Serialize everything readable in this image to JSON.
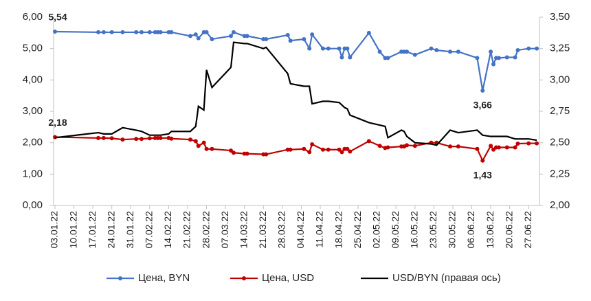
{
  "chart_data": {
    "type": "line",
    "x": [
      "2022-01-03",
      "2022-01-19",
      "2022-01-21",
      "2022-01-24",
      "2022-01-28",
      "2022-02-02",
      "2022-02-04",
      "2022-02-07",
      "2022-02-09",
      "2022-02-10",
      "2022-02-11",
      "2022-02-14",
      "2022-02-15",
      "2022-02-22",
      "2022-02-24",
      "2022-02-25",
      "2022-02-27",
      "2022-02-28",
      "2022-03-02",
      "2022-03-09",
      "2022-03-10",
      "2022-03-14",
      "2022-03-15",
      "2022-03-21",
      "2022-03-22",
      "2022-03-30",
      "2022-03-31",
      "2022-04-05",
      "2022-04-07",
      "2022-04-08",
      "2022-04-12",
      "2022-04-14",
      "2022-04-18",
      "2022-04-19",
      "2022-04-20",
      "2022-04-21",
      "2022-04-22",
      "2022-04-29",
      "2022-05-03",
      "2022-05-05",
      "2022-05-06",
      "2022-05-11",
      "2022-05-12",
      "2022-05-13",
      "2022-05-16",
      "2022-05-22",
      "2022-05-24",
      "2022-05-29",
      "2022-06-01",
      "2022-06-08",
      "2022-06-10",
      "2022-06-13",
      "2022-06-14",
      "2022-06-15",
      "2022-06-16",
      "2022-06-19",
      "2022-06-22",
      "2022-06-23",
      "2022-06-27",
      "2022-06-30"
    ],
    "xlim": [
      "2022-01-03",
      "2022-07-01"
    ],
    "xticks": [
      {
        "value": "2022-01-03",
        "label": "03.01.22"
      },
      {
        "value": "2022-01-10",
        "label": "10.01.22"
      },
      {
        "value": "2022-01-17",
        "label": "17.01.22"
      },
      {
        "value": "2022-01-24",
        "label": "24.01.22"
      },
      {
        "value": "2022-01-31",
        "label": "31.01.22"
      },
      {
        "value": "2022-02-07",
        "label": "07.02.22"
      },
      {
        "value": "2022-02-14",
        "label": "14.02.22"
      },
      {
        "value": "2022-02-21",
        "label": "21.02.22"
      },
      {
        "value": "2022-02-28",
        "label": "28.02.22"
      },
      {
        "value": "2022-03-07",
        "label": "07.03.22"
      },
      {
        "value": "2022-03-14",
        "label": "14.03.22"
      },
      {
        "value": "2022-03-21",
        "label": "21.03.22"
      },
      {
        "value": "2022-03-28",
        "label": "28.03.22"
      },
      {
        "value": "2022-04-04",
        "label": "04.04.22"
      },
      {
        "value": "2022-04-11",
        "label": "11.04.22"
      },
      {
        "value": "2022-04-18",
        "label": "18.04.22"
      },
      {
        "value": "2022-04-25",
        "label": "25.04.22"
      },
      {
        "value": "2022-05-02",
        "label": "02.05.22"
      },
      {
        "value": "2022-05-09",
        "label": "09.05.22"
      },
      {
        "value": "2022-05-16",
        "label": "16.05.22"
      },
      {
        "value": "2022-05-23",
        "label": "23.05.22"
      },
      {
        "value": "2022-05-30",
        "label": "30.05.22"
      },
      {
        "value": "2022-06-06",
        "label": "06.06.22"
      },
      {
        "value": "2022-06-13",
        "label": "13.06.22"
      },
      {
        "value": "2022-06-20",
        "label": "20.06.22"
      },
      {
        "value": "2022-06-27",
        "label": "27.06.22"
      }
    ],
    "ylim": [
      0,
      6
    ],
    "yticks": [
      {
        "value": 0,
        "label": "0,00"
      },
      {
        "value": 1,
        "label": "1,00"
      },
      {
        "value": 2,
        "label": "2,00"
      },
      {
        "value": 3,
        "label": "3,00"
      },
      {
        "value": 4,
        "label": "4,00"
      },
      {
        "value": 5,
        "label": "5,00"
      },
      {
        "value": 6,
        "label": "6,00"
      }
    ],
    "y2lim": [
      2,
      3.5
    ],
    "y2ticks": [
      {
        "value": 2,
        "label": "2,00"
      },
      {
        "value": 2.25,
        "label": "2,25"
      },
      {
        "value": 2.5,
        "label": "2,50"
      },
      {
        "value": 2.75,
        "label": "2,75"
      },
      {
        "value": 3,
        "label": "3,00"
      },
      {
        "value": 3.25,
        "label": "3,25"
      },
      {
        "value": 3.5,
        "label": "3,50"
      }
    ],
    "series": [
      {
        "name": "Цена, BYN",
        "color": "#4472c4",
        "markers": true,
        "values": [
          5.54,
          5.52,
          5.52,
          5.52,
          5.52,
          5.52,
          5.52,
          5.52,
          5.52,
          5.52,
          5.52,
          5.52,
          5.52,
          5.4,
          5.45,
          5.33,
          5.52,
          5.52,
          5.3,
          5.4,
          5.52,
          5.4,
          5.4,
          5.3,
          5.3,
          5.43,
          5.25,
          5.3,
          5.0,
          5.45,
          5.0,
          5.0,
          5.0,
          4.72,
          5.0,
          5.0,
          4.72,
          5.5,
          4.9,
          4.7,
          4.7,
          4.9,
          4.9,
          4.9,
          4.8,
          5.0,
          4.95,
          4.9,
          4.9,
          4.7,
          3.66,
          4.9,
          4.5,
          4.7,
          4.7,
          4.72,
          4.72,
          4.95,
          5.0,
          5.0
        ],
        "value_labels": [
          "5,54",
          null,
          null,
          null,
          null,
          null,
          null,
          null,
          null,
          null,
          null,
          null,
          null,
          null,
          null,
          null,
          null,
          null,
          null,
          null,
          null,
          null,
          null,
          null,
          null,
          null,
          null,
          null,
          null,
          null,
          null,
          null,
          null,
          null,
          null,
          null,
          null,
          null,
          null,
          null,
          null,
          null,
          null,
          null,
          null,
          null,
          null,
          null,
          null,
          null,
          "3,66",
          null,
          null,
          null,
          null,
          null,
          null,
          null,
          null,
          null
        ]
      },
      {
        "name": "Цена, USD",
        "color": "#c00000",
        "markers": true,
        "values": [
          2.18,
          2.15,
          2.15,
          2.14,
          2.1,
          2.12,
          2.12,
          2.14,
          2.15,
          2.15,
          2.15,
          2.15,
          2.13,
          2.1,
          2.05,
          1.9,
          2.0,
          1.8,
          1.8,
          1.75,
          1.68,
          1.65,
          1.65,
          1.63,
          1.63,
          1.78,
          1.78,
          1.8,
          1.7,
          1.95,
          1.78,
          1.78,
          1.78,
          1.7,
          1.8,
          1.8,
          1.72,
          2.05,
          1.9,
          1.83,
          1.85,
          1.88,
          1.88,
          1.92,
          1.9,
          2.0,
          2.0,
          1.88,
          1.88,
          1.8,
          1.43,
          1.9,
          1.78,
          1.85,
          1.85,
          1.85,
          1.85,
          1.97,
          1.98,
          1.98
        ],
        "value_labels": [
          "2,18",
          null,
          null,
          null,
          null,
          null,
          null,
          null,
          null,
          null,
          null,
          null,
          null,
          null,
          null,
          null,
          null,
          null,
          null,
          null,
          null,
          null,
          null,
          null,
          null,
          null,
          null,
          null,
          null,
          null,
          null,
          null,
          null,
          null,
          null,
          null,
          null,
          null,
          null,
          null,
          null,
          null,
          null,
          null,
          null,
          null,
          null,
          null,
          null,
          null,
          "1,43",
          null,
          null,
          null,
          null,
          null,
          null,
          null,
          null,
          null
        ]
      },
      {
        "name": "USD/BYN (правая ось)",
        "color": "#000000",
        "markers": false,
        "axis": "y2",
        "values": [
          2.54,
          2.58,
          2.57,
          2.57,
          2.62,
          2.6,
          2.59,
          2.56,
          2.56,
          2.56,
          2.56,
          2.57,
          2.59,
          2.59,
          2.63,
          2.79,
          2.76,
          3.08,
          2.94,
          3.1,
          3.3,
          3.29,
          3.29,
          3.25,
          3.26,
          3.05,
          2.97,
          2.95,
          2.95,
          2.81,
          2.83,
          2.83,
          2.82,
          2.8,
          2.78,
          2.77,
          2.72,
          2.66,
          2.64,
          2.63,
          2.54,
          2.6,
          2.59,
          2.55,
          2.5,
          2.49,
          2.48,
          2.6,
          2.58,
          2.6,
          2.56,
          2.55,
          2.55,
          2.55,
          2.55,
          2.55,
          2.53,
          2.53,
          2.53,
          2.52
        ]
      }
    ],
    "legend": "bottom"
  }
}
